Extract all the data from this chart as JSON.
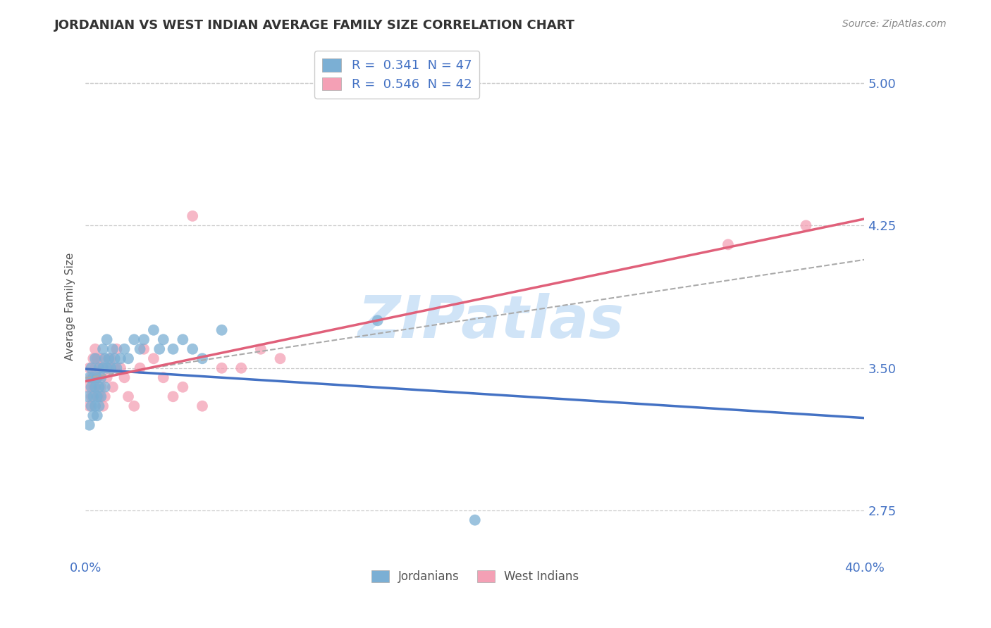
{
  "title": "JORDANIAN VS WEST INDIAN AVERAGE FAMILY SIZE CORRELATION CHART",
  "source_text": "Source: ZipAtlas.com",
  "ylabel": "Average Family Size",
  "xlim": [
    0.0,
    0.4
  ],
  "ylim": [
    2.5,
    5.15
  ],
  "ytick_labels": [
    "2.75",
    "3.50",
    "4.25",
    "5.00"
  ],
  "ytick_values": [
    2.75,
    3.5,
    4.25,
    5.0
  ],
  "title_fontsize": 13,
  "tick_color": "#4472C4",
  "background_color": "#ffffff",
  "grid_color": "#cccccc",
  "watermark_text": "ZIPatlas",
  "watermark_color": "#d0e4f7",
  "jordanians_color": "#7bafd4",
  "west_indians_color": "#f4a0b5",
  "jordanians_line_color": "#4472C4",
  "west_indians_line_color": "#e0607a",
  "regression_line_color": "#aaaaaa",
  "legend_r1": "R =  0.341",
  "legend_n1": "N = 47",
  "legend_r2": "R =  0.546",
  "legend_n2": "N = 42",
  "jordanians_x": [
    0.001,
    0.002,
    0.002,
    0.003,
    0.003,
    0.003,
    0.004,
    0.004,
    0.004,
    0.005,
    0.005,
    0.005,
    0.006,
    0.006,
    0.006,
    0.007,
    0.007,
    0.007,
    0.008,
    0.008,
    0.009,
    0.009,
    0.01,
    0.01,
    0.011,
    0.011,
    0.012,
    0.013,
    0.014,
    0.015,
    0.016,
    0.018,
    0.02,
    0.022,
    0.025,
    0.028,
    0.03,
    0.035,
    0.038,
    0.04,
    0.045,
    0.05,
    0.055,
    0.06,
    0.07,
    0.15,
    0.2
  ],
  "jordanians_y": [
    3.35,
    3.2,
    3.45,
    3.3,
    3.4,
    3.5,
    3.25,
    3.35,
    3.45,
    3.3,
    3.4,
    3.55,
    3.35,
    3.45,
    3.25,
    3.4,
    3.3,
    3.5,
    3.45,
    3.35,
    3.5,
    3.6,
    3.4,
    3.55,
    3.5,
    3.65,
    3.55,
    3.5,
    3.6,
    3.55,
    3.5,
    3.55,
    3.6,
    3.55,
    3.65,
    3.6,
    3.65,
    3.7,
    3.6,
    3.65,
    3.6,
    3.65,
    3.6,
    3.55,
    3.7,
    3.75,
    2.7
  ],
  "west_indians_x": [
    0.001,
    0.002,
    0.002,
    0.003,
    0.003,
    0.004,
    0.004,
    0.005,
    0.005,
    0.006,
    0.006,
    0.007,
    0.007,
    0.008,
    0.008,
    0.009,
    0.009,
    0.01,
    0.011,
    0.012,
    0.013,
    0.014,
    0.015,
    0.016,
    0.018,
    0.02,
    0.022,
    0.025,
    0.028,
    0.03,
    0.035,
    0.04,
    0.045,
    0.05,
    0.055,
    0.06,
    0.07,
    0.08,
    0.09,
    0.1,
    0.33,
    0.37
  ],
  "west_indians_y": [
    3.4,
    3.3,
    3.5,
    3.45,
    3.35,
    3.55,
    3.4,
    3.5,
    3.6,
    3.45,
    3.55,
    3.5,
    3.35,
    3.4,
    3.55,
    3.3,
    3.5,
    3.35,
    3.45,
    3.5,
    3.55,
    3.4,
    3.5,
    3.6,
    3.5,
    3.45,
    3.35,
    3.3,
    3.5,
    3.6,
    3.55,
    3.45,
    3.35,
    3.4,
    4.3,
    3.3,
    3.5,
    3.5,
    3.6,
    3.55,
    4.15,
    4.25
  ]
}
